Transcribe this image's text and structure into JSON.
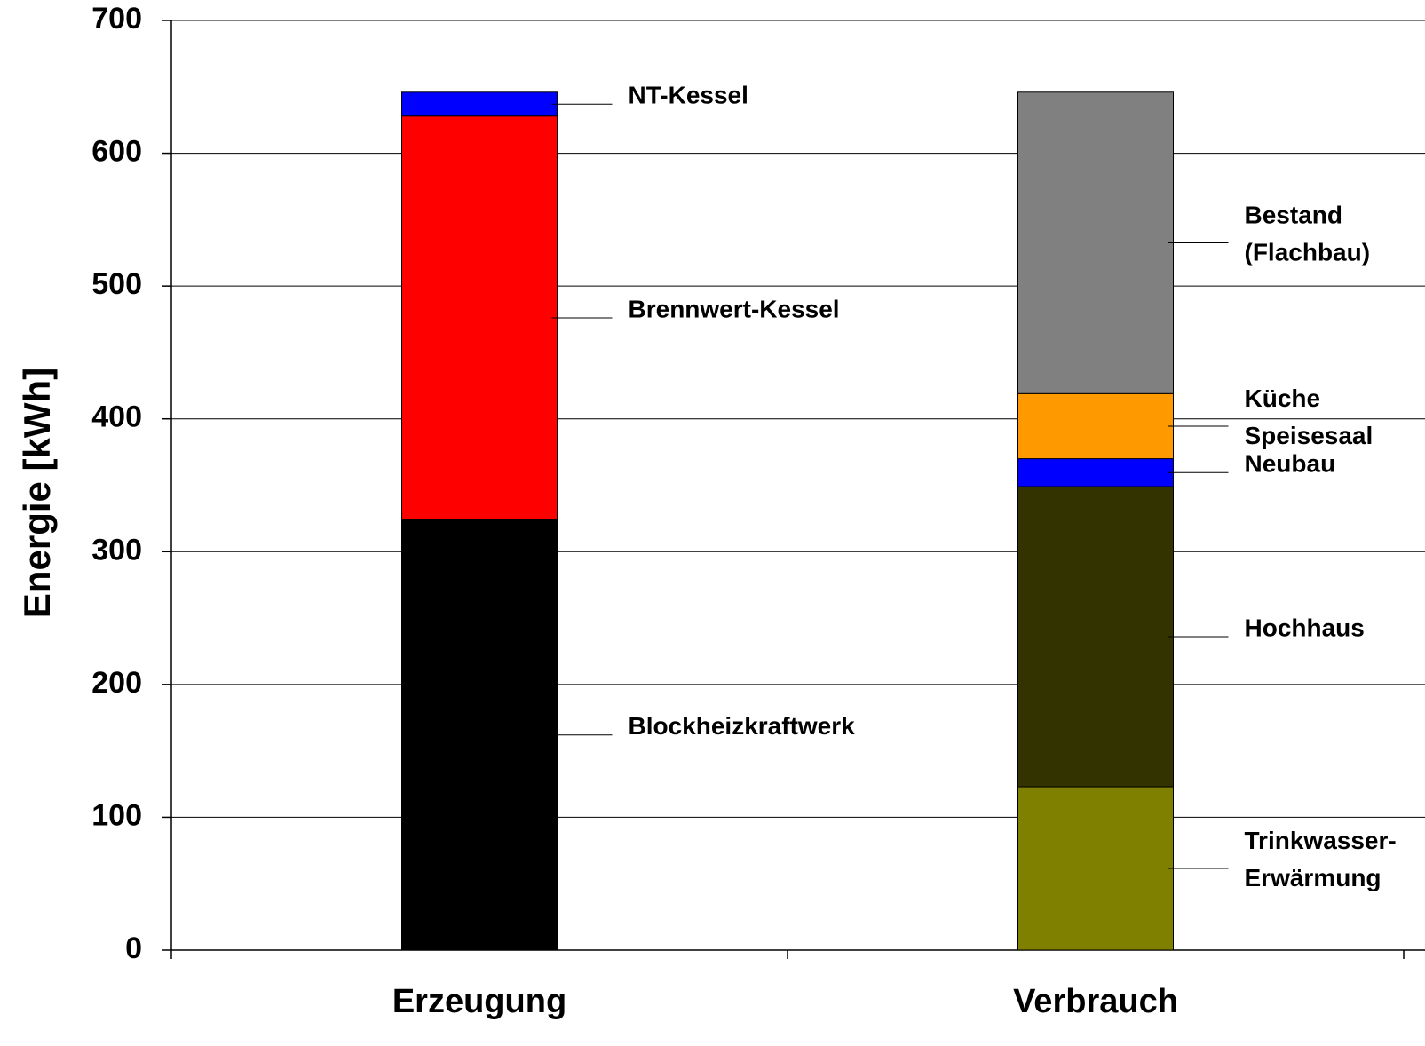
{
  "chart_data": {
    "type": "stacked_bar",
    "y_label": "Energie [kWh]",
    "categories": [
      "Erzeugung",
      "Verbrauch"
    ],
    "series": [
      {
        "name": "Blockheizkraftwerk",
        "color": "#000000",
        "values": [
          324,
          null
        ]
      },
      {
        "name": "Brennwert-Kessel",
        "color": "#ff0000",
        "values": [
          304,
          null
        ]
      },
      {
        "name": "NT-Kessel",
        "color": "#0000ff",
        "values": [
          18,
          null
        ]
      },
      {
        "name": "Trinkwasser-\nErwärmung",
        "color": "#808000",
        "values": [
          null,
          123
        ]
      },
      {
        "name": "Hochhaus",
        "color": "#333300",
        "values": [
          null,
          226
        ]
      },
      {
        "name": "Neubau",
        "color": "#0000ff",
        "values": [
          null,
          21
        ]
      },
      {
        "name": "Küche\nSpeisesaal",
        "color": "#ff9900",
        "values": [
          null,
          49
        ]
      },
      {
        "name": "Bestand\n(Flachbau)",
        "color": "#808080",
        "values": [
          null,
          227
        ]
      }
    ],
    "ylim": [
      0,
      700
    ],
    "yticks": [
      0,
      100,
      200,
      300,
      400,
      500,
      600,
      700
    ],
    "grid": true
  }
}
